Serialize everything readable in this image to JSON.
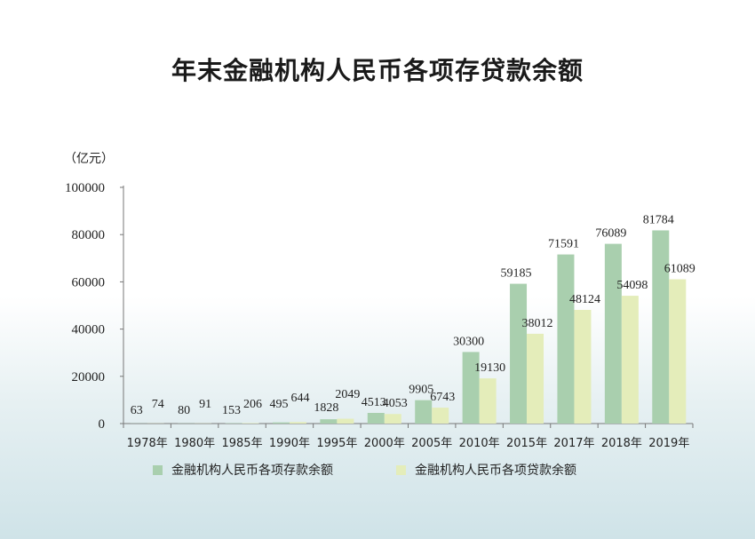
{
  "chart_data": {
    "type": "bar",
    "title": "年末金融机构人民币各项存贷款余额",
    "ylabel": "（亿元）",
    "xlabel": "",
    "ylim": [
      0,
      100000
    ],
    "yticks": [
      0,
      20000,
      40000,
      60000,
      80000,
      100000
    ],
    "grid": false,
    "legend_position": "bottom",
    "categories": [
      "1978年",
      "1980年",
      "1985年",
      "1990年",
      "1995年",
      "2000年",
      "2005年",
      "2010年",
      "2015年",
      "2017年",
      "2018年",
      "2019年"
    ],
    "series": [
      {
        "name": "金融机构人民币各项存款余额",
        "color": "#a9cfae",
        "values": [
          63,
          80,
          153,
          495,
          1828,
          4513,
          9905,
          30300,
          59185,
          71591,
          76089,
          81784
        ]
      },
      {
        "name": "金融机构人民币各项贷款余额",
        "color": "#e4edba",
        "values": [
          74,
          91,
          206,
          644,
          2049,
          4053,
          6743,
          19130,
          38012,
          48124,
          54098,
          61089
        ]
      }
    ]
  }
}
